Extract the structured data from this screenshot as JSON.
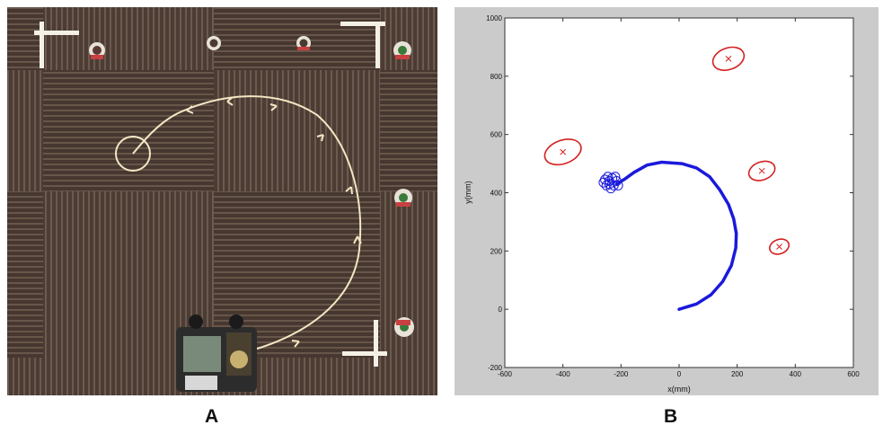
{
  "panels": {
    "a": {
      "label": "A"
    },
    "b": {
      "label": "B"
    }
  },
  "colors": {
    "trajectory": "#1a1adb",
    "landmark": "#d42020",
    "photo_path": "#f2e8c4",
    "carpet": "#4a3a31"
  },
  "chart_data": {
    "type": "scatter",
    "title": "",
    "xlabel": "x(mm)",
    "ylabel": "y(mm)",
    "xlim": [
      -600,
      600
    ],
    "ylim": [
      -200,
      1000
    ],
    "xticks": [
      -600,
      -400,
      -200,
      0,
      200,
      400,
      600
    ],
    "yticks": [
      -200,
      0,
      200,
      400,
      600,
      800,
      1000
    ],
    "x_tick_labels": [
      "-600",
      "-400",
      "-200",
      "0",
      "200",
      "400",
      "600"
    ],
    "y_tick_labels": [
      "-200",
      "0",
      "200",
      "400",
      "600",
      "800",
      "1000"
    ],
    "grid": false,
    "series": [
      {
        "kind": "trajectory",
        "points": [
          [
            0,
            0
          ],
          [
            60,
            18
          ],
          [
            110,
            50
          ],
          [
            150,
            95
          ],
          [
            180,
            150
          ],
          [
            195,
            210
          ],
          [
            197,
            260
          ],
          [
            188,
            310
          ],
          [
            170,
            360
          ],
          [
            140,
            410
          ],
          [
            105,
            455
          ],
          [
            60,
            485
          ],
          [
            10,
            500
          ],
          [
            -60,
            505
          ],
          [
            -110,
            495
          ],
          [
            -155,
            470
          ],
          [
            -190,
            445
          ],
          [
            -215,
            430
          ]
        ]
      },
      {
        "kind": "landmarks",
        "points": [
          [
            -400,
            540
          ],
          [
            170,
            860
          ],
          [
            285,
            475
          ],
          [
            345,
            215
          ]
        ]
      },
      {
        "kind": "end-uncertainty",
        "points": [
          [
            -240,
            440
          ],
          [
            -225,
            425
          ],
          [
            -250,
            425
          ],
          [
            -230,
            450
          ],
          [
            -215,
            440
          ],
          [
            -245,
            455
          ],
          [
            -260,
            435
          ],
          [
            -235,
            415
          ],
          [
            -220,
            455
          ],
          [
            -255,
            445
          ],
          [
            -210,
            425
          ],
          [
            -240,
            430
          ]
        ]
      }
    ]
  }
}
